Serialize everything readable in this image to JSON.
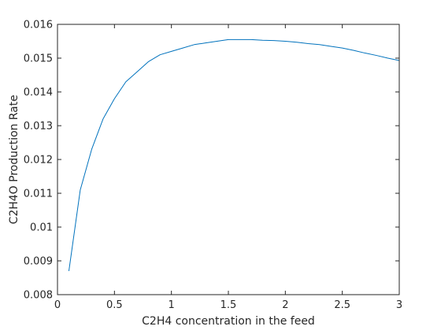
{
  "chart_data": {
    "type": "line",
    "title": "",
    "xlabel": "C2H4 concentration in the feed",
    "ylabel": "C2H4O Production Rate",
    "xlim": [
      0,
      3
    ],
    "ylim": [
      0.008,
      0.016
    ],
    "xticks": [
      0,
      0.5,
      1,
      1.5,
      2,
      2.5,
      3
    ],
    "xtick_labels": [
      "0",
      "0.5",
      "1",
      "1.5",
      "2",
      "2.5",
      "3"
    ],
    "yticks": [
      0.008,
      0.009,
      0.01,
      0.011,
      0.012,
      0.013,
      0.014,
      0.015,
      0.016
    ],
    "ytick_labels": [
      "0.008",
      "0.009",
      "0.01",
      "0.011",
      "0.012",
      "0.013",
      "0.014",
      "0.015",
      "0.016"
    ],
    "grid": false,
    "legend": "none",
    "series": [
      {
        "color": "#0072BD",
        "x": [
          0.1,
          0.2,
          0.3,
          0.4,
          0.5,
          0.6,
          0.7,
          0.8,
          0.9,
          1.0,
          1.1,
          1.2,
          1.3,
          1.4,
          1.5,
          1.6,
          1.7,
          1.8,
          1.9,
          2.0,
          2.1,
          2.2,
          2.3,
          2.4,
          2.5,
          2.6,
          2.7,
          2.8,
          2.9,
          3.0
        ],
        "y": [
          0.0087,
          0.0111,
          0.0123,
          0.0132,
          0.0138,
          0.0143,
          0.0146,
          0.0149,
          0.0151,
          0.0152,
          0.0153,
          0.0154,
          0.01545,
          0.0155,
          0.01555,
          0.01555,
          0.01555,
          0.01553,
          0.01552,
          0.0155,
          0.01547,
          0.01543,
          0.0154,
          0.01535,
          0.0153,
          0.01523,
          0.01515,
          0.01508,
          0.015,
          0.01493
        ]
      }
    ]
  }
}
